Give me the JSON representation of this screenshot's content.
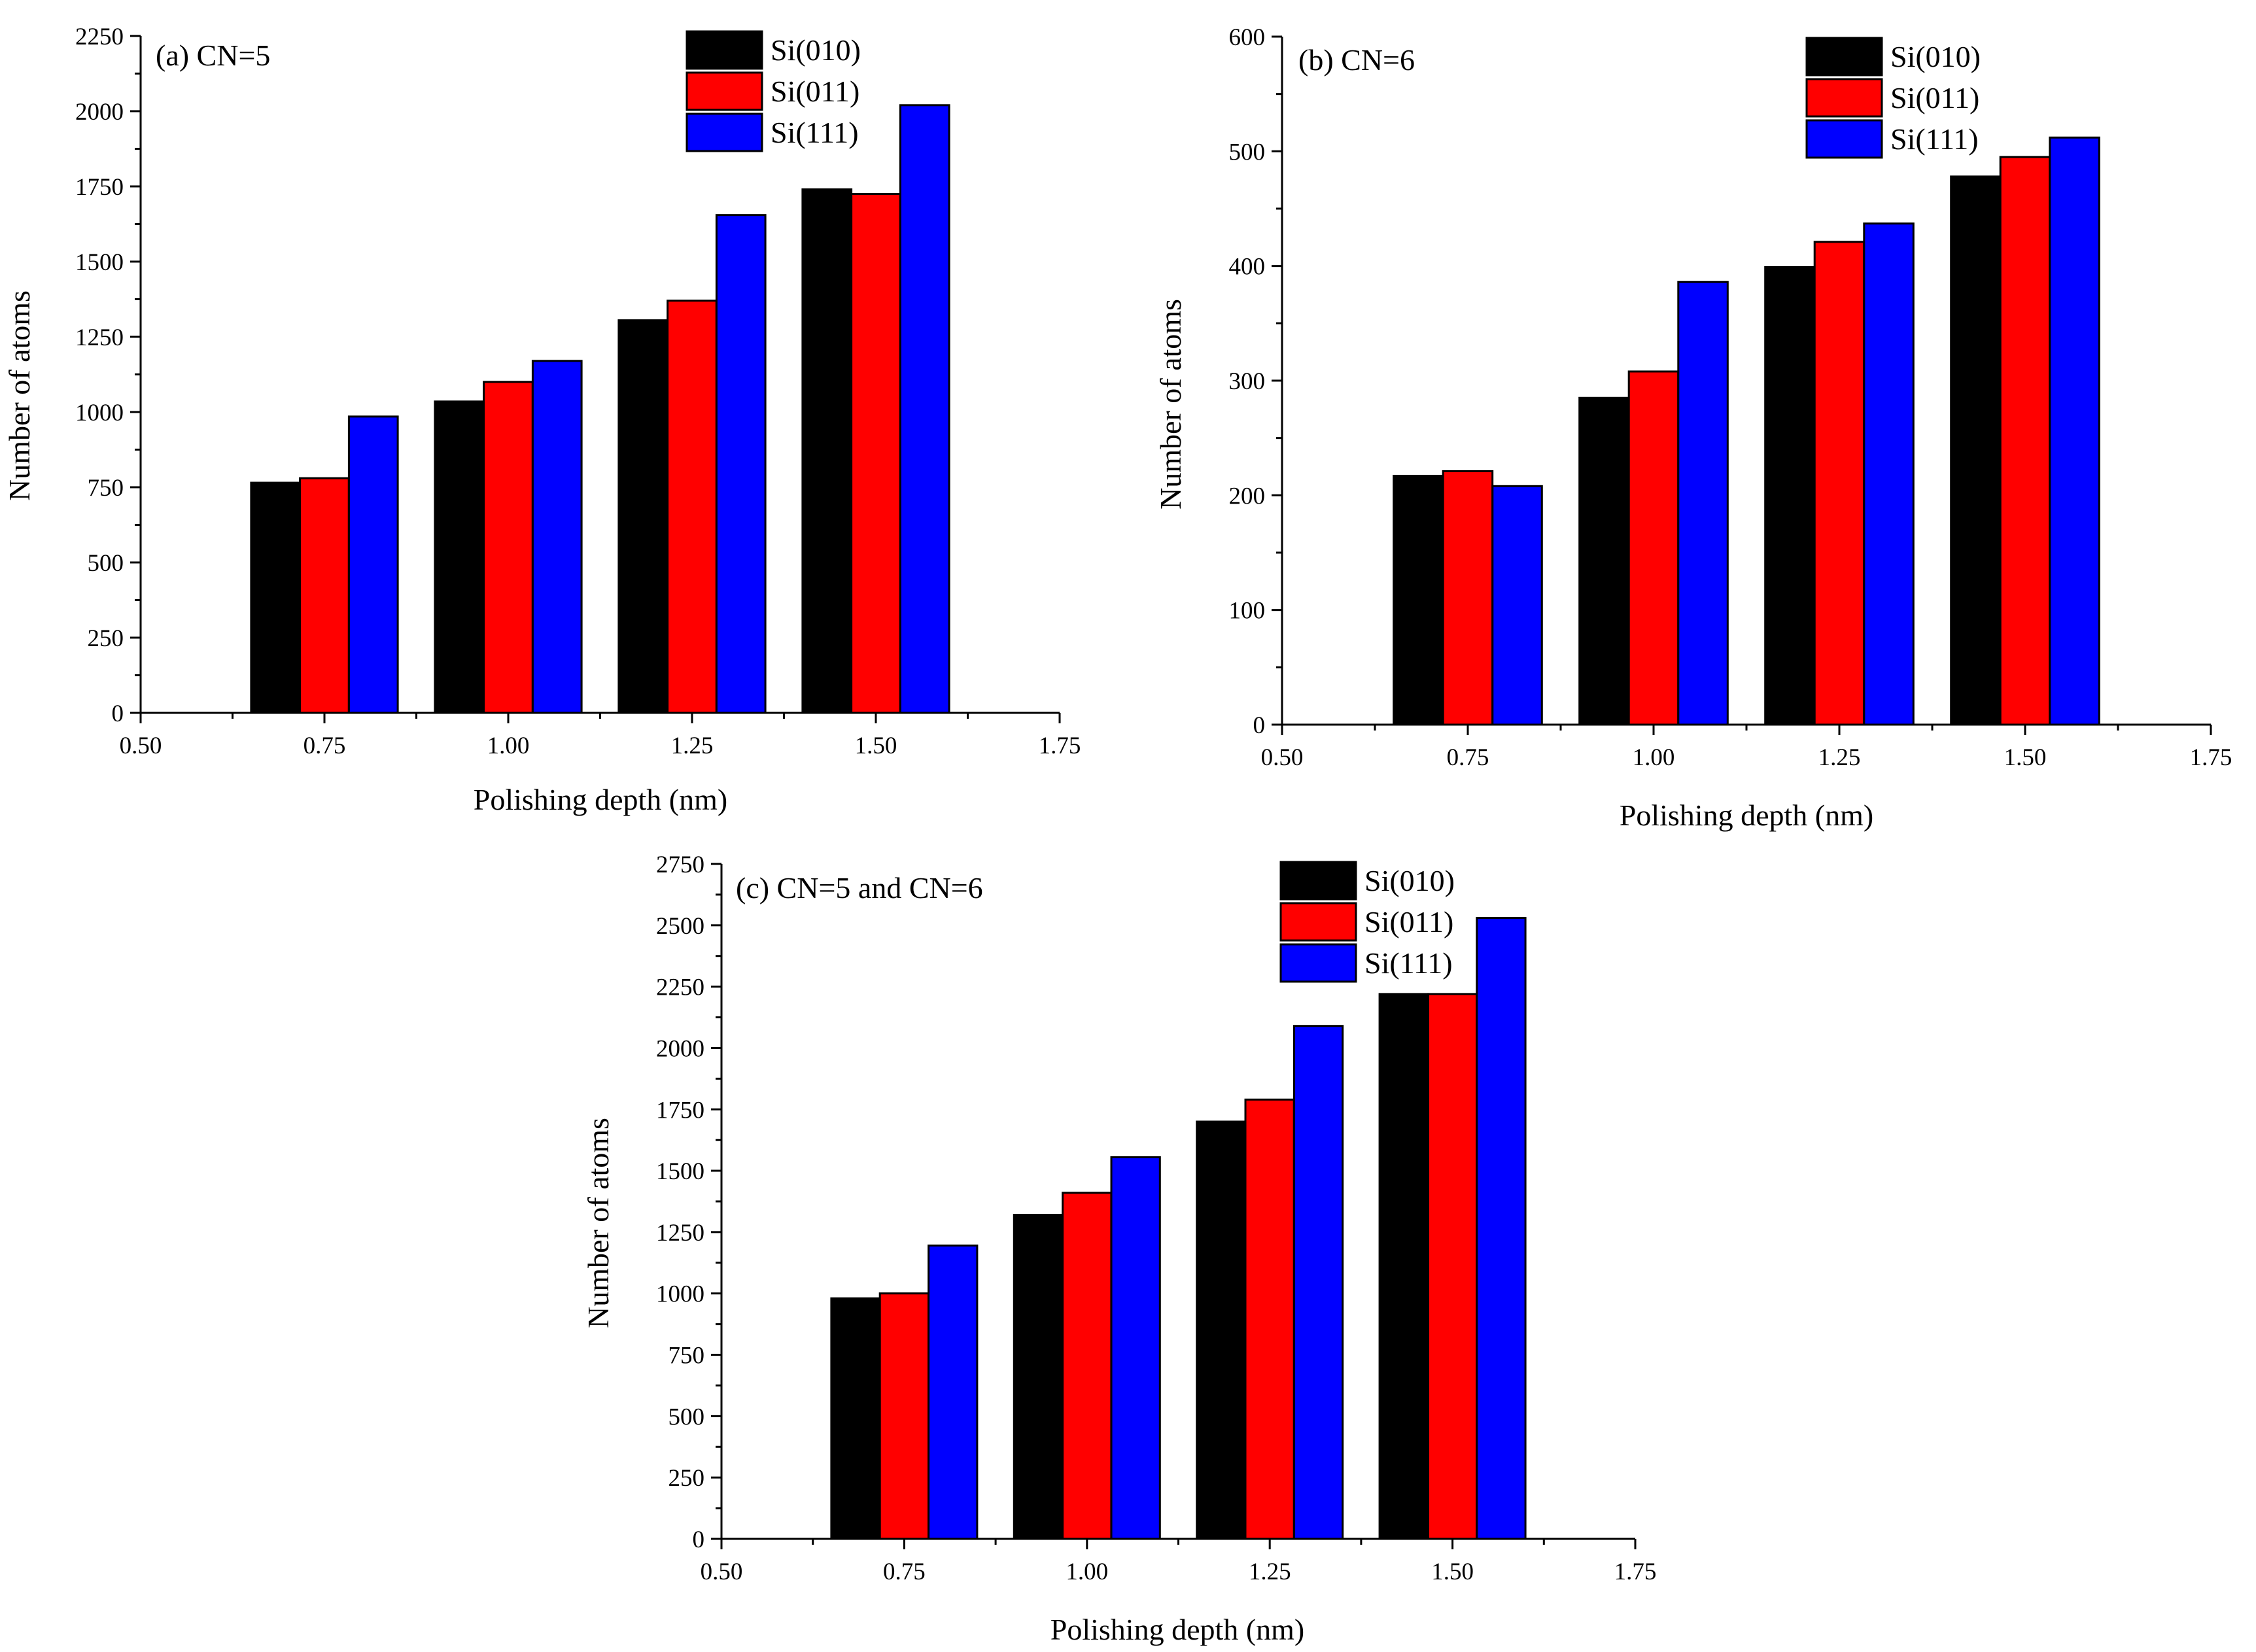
{
  "figure": {
    "colors": {
      "si010": "#000000",
      "si011": "#ff0000",
      "si111": "#0000ff"
    }
  },
  "chart_data": [
    {
      "type": "bar",
      "title": "(a) CN=5",
      "xlabel": "Polishing depth (nm)",
      "ylabel": "Number of atoms",
      "xlim": [
        0.5,
        1.75
      ],
      "ylim": [
        0,
        2250
      ],
      "xticks": [
        "0.50",
        "0.75",
        "1.00",
        "1.25",
        "1.50",
        "1.75"
      ],
      "yticks": [
        "0",
        "250",
        "500",
        "750",
        "1000",
        "1250",
        "1500",
        "1750",
        "2000",
        "2250"
      ],
      "categories": [
        0.75,
        1.0,
        1.25,
        1.5
      ],
      "legend_position": "top-right",
      "series": [
        {
          "name": "Si(010)",
          "color": "#000000",
          "values": [
            765,
            1035,
            1305,
            1740
          ]
        },
        {
          "name": "Si(011)",
          "color": "#ff0000",
          "values": [
            780,
            1100,
            1370,
            1725
          ]
        },
        {
          "name": "Si(111)",
          "color": "#0000ff",
          "values": [
            985,
            1170,
            1655,
            2020
          ]
        }
      ]
    },
    {
      "type": "bar",
      "title": "(b) CN=6",
      "xlabel": "Polishing depth (nm)",
      "ylabel": "Number of atoms",
      "xlim": [
        0.5,
        1.75
      ],
      "ylim": [
        0,
        600
      ],
      "xticks": [
        "0.50",
        "0.75",
        "1.00",
        "1.25",
        "1.50",
        "1.75"
      ],
      "yticks": [
        "0",
        "100",
        "200",
        "300",
        "400",
        "500",
        "600"
      ],
      "categories": [
        0.75,
        1.0,
        1.25,
        1.5
      ],
      "legend_position": "top-right",
      "series": [
        {
          "name": "Si(010)",
          "color": "#000000",
          "values": [
            217,
            285,
            399,
            478
          ]
        },
        {
          "name": "Si(011)",
          "color": "#ff0000",
          "values": [
            221,
            308,
            421,
            495
          ]
        },
        {
          "name": "Si(111)",
          "color": "#0000ff",
          "values": [
            208,
            386,
            437,
            512
          ]
        }
      ]
    },
    {
      "type": "bar",
      "title": "(c) CN=5 and CN=6",
      "xlabel": "Polishing depth (nm)",
      "ylabel": "Number of atoms",
      "xlim": [
        0.5,
        1.75
      ],
      "ylim": [
        0,
        2750
      ],
      "xticks": [
        "0.50",
        "0.75",
        "1.00",
        "1.25",
        "1.50",
        "1.75"
      ],
      "yticks": [
        "0",
        "250",
        "500",
        "750",
        "1000",
        "1250",
        "1500",
        "1750",
        "2000",
        "2250",
        "2500",
        "2750"
      ],
      "categories": [
        0.75,
        1.0,
        1.25,
        1.5
      ],
      "legend_position": "top-right",
      "series": [
        {
          "name": "Si(010)",
          "color": "#000000",
          "values": [
            980,
            1320,
            1700,
            2220
          ]
        },
        {
          "name": "Si(011)",
          "color": "#ff0000",
          "values": [
            1000,
            1410,
            1790,
            2220
          ]
        },
        {
          "name": "Si(111)",
          "color": "#0000ff",
          "values": [
            1195,
            1555,
            2090,
            2530
          ]
        }
      ]
    }
  ]
}
